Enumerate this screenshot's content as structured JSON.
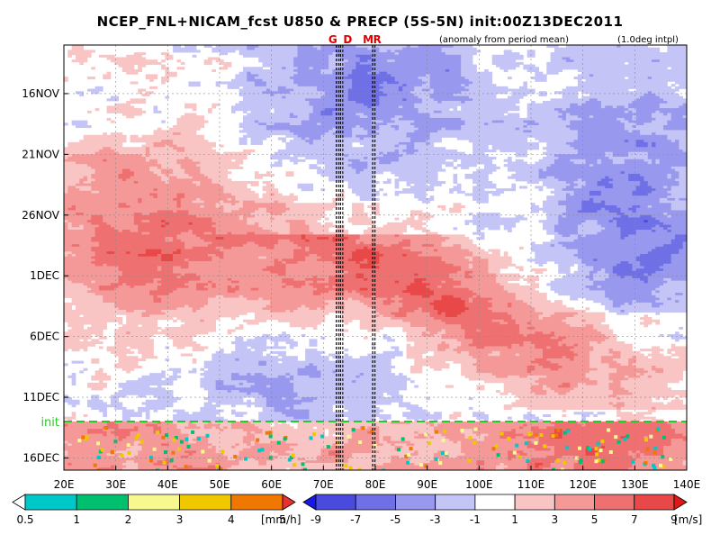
{
  "chart_data": {
    "type": "heatmap",
    "title": "NCEP_FNL+NICAM_fcst U850 & PRECP (5S-5N) init:00Z13DEC2011",
    "subtitle_left": "(anomaly from period mean)",
    "subtitle_right": "(1.0deg intpl)",
    "x_axis": {
      "range": [
        20,
        140
      ],
      "ticks": [
        20,
        30,
        40,
        50,
        60,
        70,
        80,
        90,
        100,
        110,
        120,
        130,
        140
      ],
      "tick_labels": [
        "20E",
        "30E",
        "40E",
        "50E",
        "60E",
        "70E",
        "80E",
        "90E",
        "100E",
        "110E",
        "120E",
        "130E",
        "140E"
      ]
    },
    "y_axis": {
      "range_days": [
        0,
        35
      ],
      "ticks_days": [
        4,
        9,
        14,
        19,
        24,
        29,
        34
      ],
      "tick_labels": [
        "16NOV",
        "21NOV",
        "26NOV",
        "1DEC",
        "6DEC",
        "11DEC",
        "16DEC"
      ]
    },
    "markers": [
      {
        "label": "G",
        "lon": 72.5
      },
      {
        "label": "D",
        "lon": 73.3
      },
      {
        "label": "M",
        "lon": 79.5
      },
      {
        "label": "R",
        "lon": 79.5
      }
    ],
    "init_line": {
      "label": "init",
      "day": 31
    },
    "wind_colorbar": {
      "unit": "[m/s]",
      "labels": [
        "-9",
        "-7",
        "-5",
        "-3",
        "-1",
        "1",
        "3",
        "5",
        "7",
        "9"
      ],
      "colors": [
        "#1818e8",
        "#4a4adc",
        "#7070e6",
        "#9898ee",
        "#c4c4f6",
        "#ffffff",
        "#f8c4c4",
        "#f49898",
        "#ee7070",
        "#e84848",
        "#e01818"
      ]
    },
    "precip_colorbar": {
      "unit": "[mm/h]",
      "labels": [
        "0.5",
        "1",
        "2",
        "3",
        "4",
        "5"
      ],
      "colors": [
        "#ffffff",
        "#00c8c8",
        "#00c070",
        "#f8f890",
        "#f0c800",
        "#f07800",
        "#e83030"
      ]
    }
  }
}
